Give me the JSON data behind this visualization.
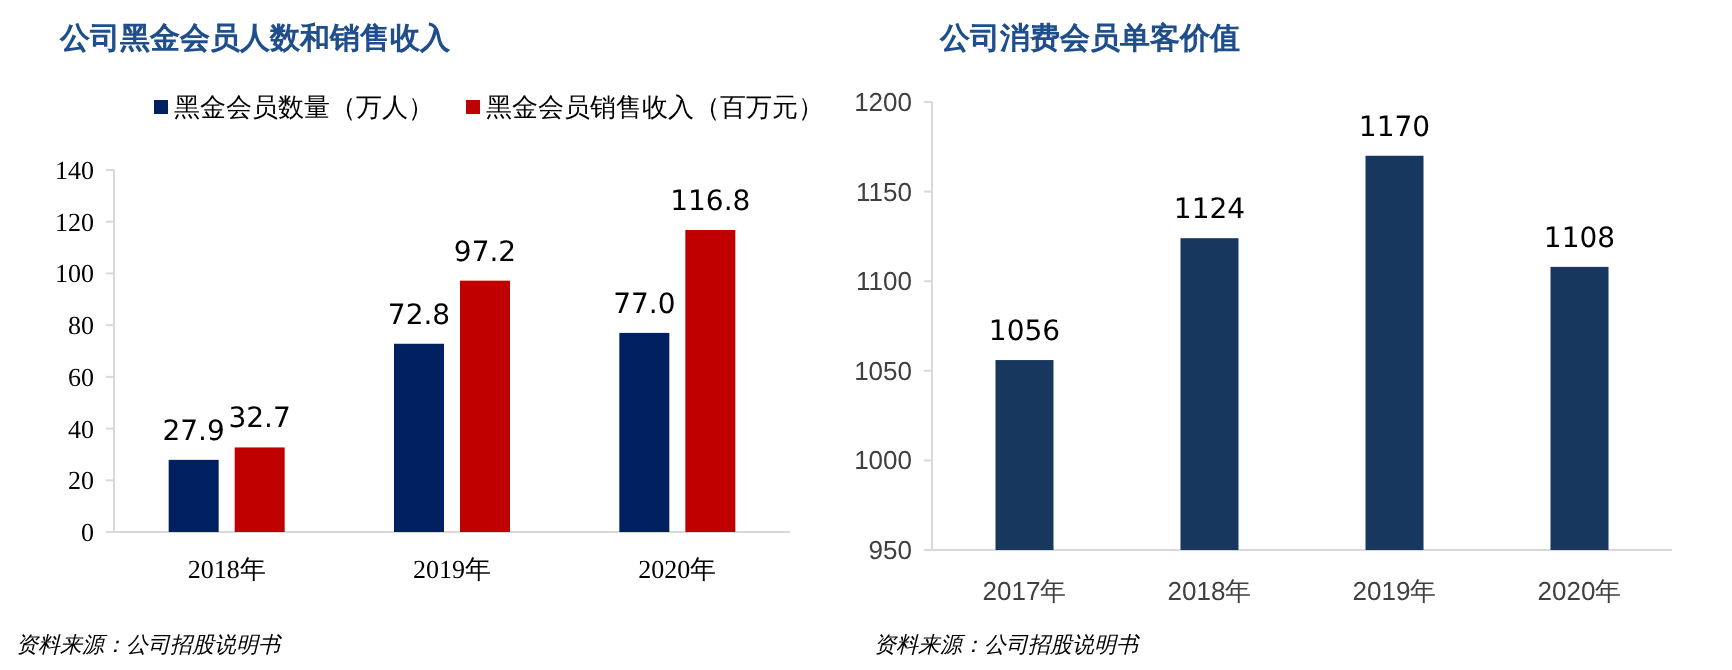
{
  "chart_data": [
    {
      "type": "bar",
      "title": "公司黑金会员人数和销售收入",
      "categories": [
        "2018年",
        "2019年",
        "2020年"
      ],
      "series": [
        {
          "name": "黑金会员数量（万人）",
          "color": "#002060",
          "values": [
            27.9,
            72.8,
            77.0
          ],
          "value_labels": [
            "27.9",
            "72.8",
            "77.0"
          ]
        },
        {
          "name": "黑金会员销售收入（百万元）",
          "color": "#c00000",
          "values": [
            32.7,
            97.2,
            116.8
          ],
          "value_labels": [
            "32.7",
            "97.2",
            "116.8"
          ]
        }
      ],
      "ylim": [
        0,
        140
      ],
      "yticks": [
        0,
        20,
        40,
        60,
        80,
        100,
        120,
        140
      ],
      "legend": "top",
      "annotations": [
        "资料来源：公司招股说明书"
      ]
    },
    {
      "type": "bar",
      "title": "公司消费会员单客价值",
      "categories": [
        "2017年",
        "2018年",
        "2019年",
        "2020年"
      ],
      "series": [
        {
          "color": "#17375e",
          "values": [
            1056,
            1124,
            1170,
            1108
          ]
        }
      ],
      "ylim": [
        950,
        1200
      ],
      "yticks": [
        950,
        1000,
        1050,
        1100,
        1150,
        1200
      ],
      "data_labels": true,
      "annotations": [
        "资料来源：公司招股说明书"
      ]
    }
  ]
}
